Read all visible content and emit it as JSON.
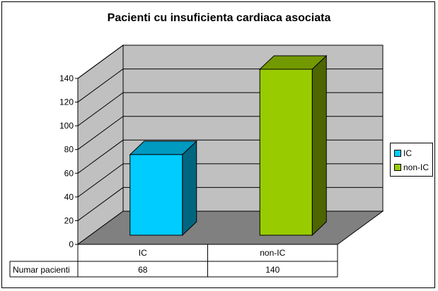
{
  "chart_data": {
    "type": "bar",
    "title": "Pacienti cu insuficienta cardiaca asociata",
    "categories": [
      "IC",
      "non-IC"
    ],
    "series": [
      {
        "name": "Numar pacienti",
        "values": [
          68,
          140
        ]
      }
    ],
    "point_colors": [
      "#00ccff",
      "#99cc00"
    ],
    "point_side_colors": [
      "#006680",
      "#4d6600"
    ],
    "point_top_colors": [
      "#0099c0",
      "#739900"
    ],
    "ylim": [
      0,
      140
    ],
    "yticks": [
      0,
      20,
      40,
      60,
      80,
      100,
      120,
      140
    ],
    "grid": true,
    "legend_position": "right",
    "legend": [
      {
        "label": "IC",
        "color": "#00ccff"
      },
      {
        "label": "non-IC",
        "color": "#99cc00"
      }
    ],
    "data_table": {
      "row_label": "Numar pacienti",
      "values": [
        "68",
        "140"
      ]
    }
  }
}
